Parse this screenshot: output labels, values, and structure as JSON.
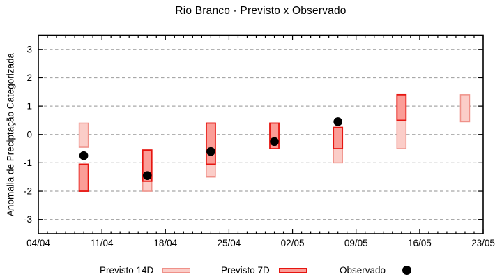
{
  "title": "Rio Branco - Previsto x Observado",
  "colors": {
    "previsto14_fill": "#fbcdc8",
    "previsto14_stroke": "#ef9189",
    "previsto7_fill": "#fb9d97",
    "previsto7_stroke": "#e61510",
    "observado_fill": "#000000",
    "grid": "#a8a8a8",
    "axis": "#000000"
  },
  "legend": {
    "items": [
      {
        "label": "Previsto 14D",
        "swatch": "bar-light"
      },
      {
        "label": "Previsto 7D",
        "swatch": "bar-dark"
      },
      {
        "label": "Observado",
        "swatch": "dot"
      }
    ]
  },
  "chart_data": {
    "type": "bar",
    "subtype": "floating-range-bars-with-scatter",
    "title": "Rio Branco - Previsto x Observado",
    "xlabel": "",
    "ylabel": "Anomalia de Preciptação Categorizada",
    "ylim": [
      -3.5,
      3.5
    ],
    "yticks": [
      3,
      2,
      1,
      0,
      -1,
      -2,
      -3
    ],
    "grid": "horizontal-dashed",
    "legend_position": "below-plot",
    "x_days": 49,
    "x_major_tick_interval_days": 7,
    "x_minor_tick_interval_days": 1,
    "x_tick_labels": [
      "04/04",
      "11/04",
      "18/04",
      "25/04",
      "02/05",
      "09/05",
      "16/05",
      "23/05"
    ],
    "series": [
      {
        "name": "Previsto 14D",
        "type": "range-bar",
        "points": [
          {
            "date": "09/04",
            "day": 5,
            "low": -0.45,
            "high": 0.4
          },
          {
            "date": "16/04",
            "day": 12,
            "low": -2.0,
            "high": -0.55
          },
          {
            "date": "23/04",
            "day": 19,
            "low": -1.5,
            "high": 0.4
          },
          {
            "date": "30/04",
            "day": 26,
            "low": -0.5,
            "high": 0.4
          },
          {
            "date": "07/05",
            "day": 33,
            "low": -1.0,
            "high": 0.25
          },
          {
            "date": "14/05",
            "day": 40,
            "low": -0.5,
            "high": 1.4
          },
          {
            "date": "21/05",
            "day": 47,
            "low": 0.45,
            "high": 1.4
          }
        ]
      },
      {
        "name": "Previsto 7D",
        "type": "range-bar",
        "points": [
          {
            "date": "09/04",
            "day": 5,
            "low": -2.0,
            "high": -1.05
          },
          {
            "date": "16/04",
            "day": 12,
            "low": -1.65,
            "high": -0.55
          },
          {
            "date": "23/04",
            "day": 19,
            "low": -1.05,
            "high": 0.4
          },
          {
            "date": "30/04",
            "day": 26,
            "low": -0.5,
            "high": 0.4
          },
          {
            "date": "07/05",
            "day": 33,
            "low": -0.5,
            "high": 0.25
          },
          {
            "date": "14/05",
            "day": 40,
            "low": 0.5,
            "high": 1.4
          }
        ]
      },
      {
        "name": "Observado",
        "type": "scatter",
        "points": [
          {
            "date": "09/04",
            "day": 5,
            "value": -0.75
          },
          {
            "date": "16/04",
            "day": 12,
            "value": -1.45
          },
          {
            "date": "23/04",
            "day": 19,
            "value": -0.6
          },
          {
            "date": "30/04",
            "day": 26,
            "value": -0.25
          },
          {
            "date": "07/05",
            "day": 33,
            "value": 0.45
          }
        ]
      }
    ]
  }
}
